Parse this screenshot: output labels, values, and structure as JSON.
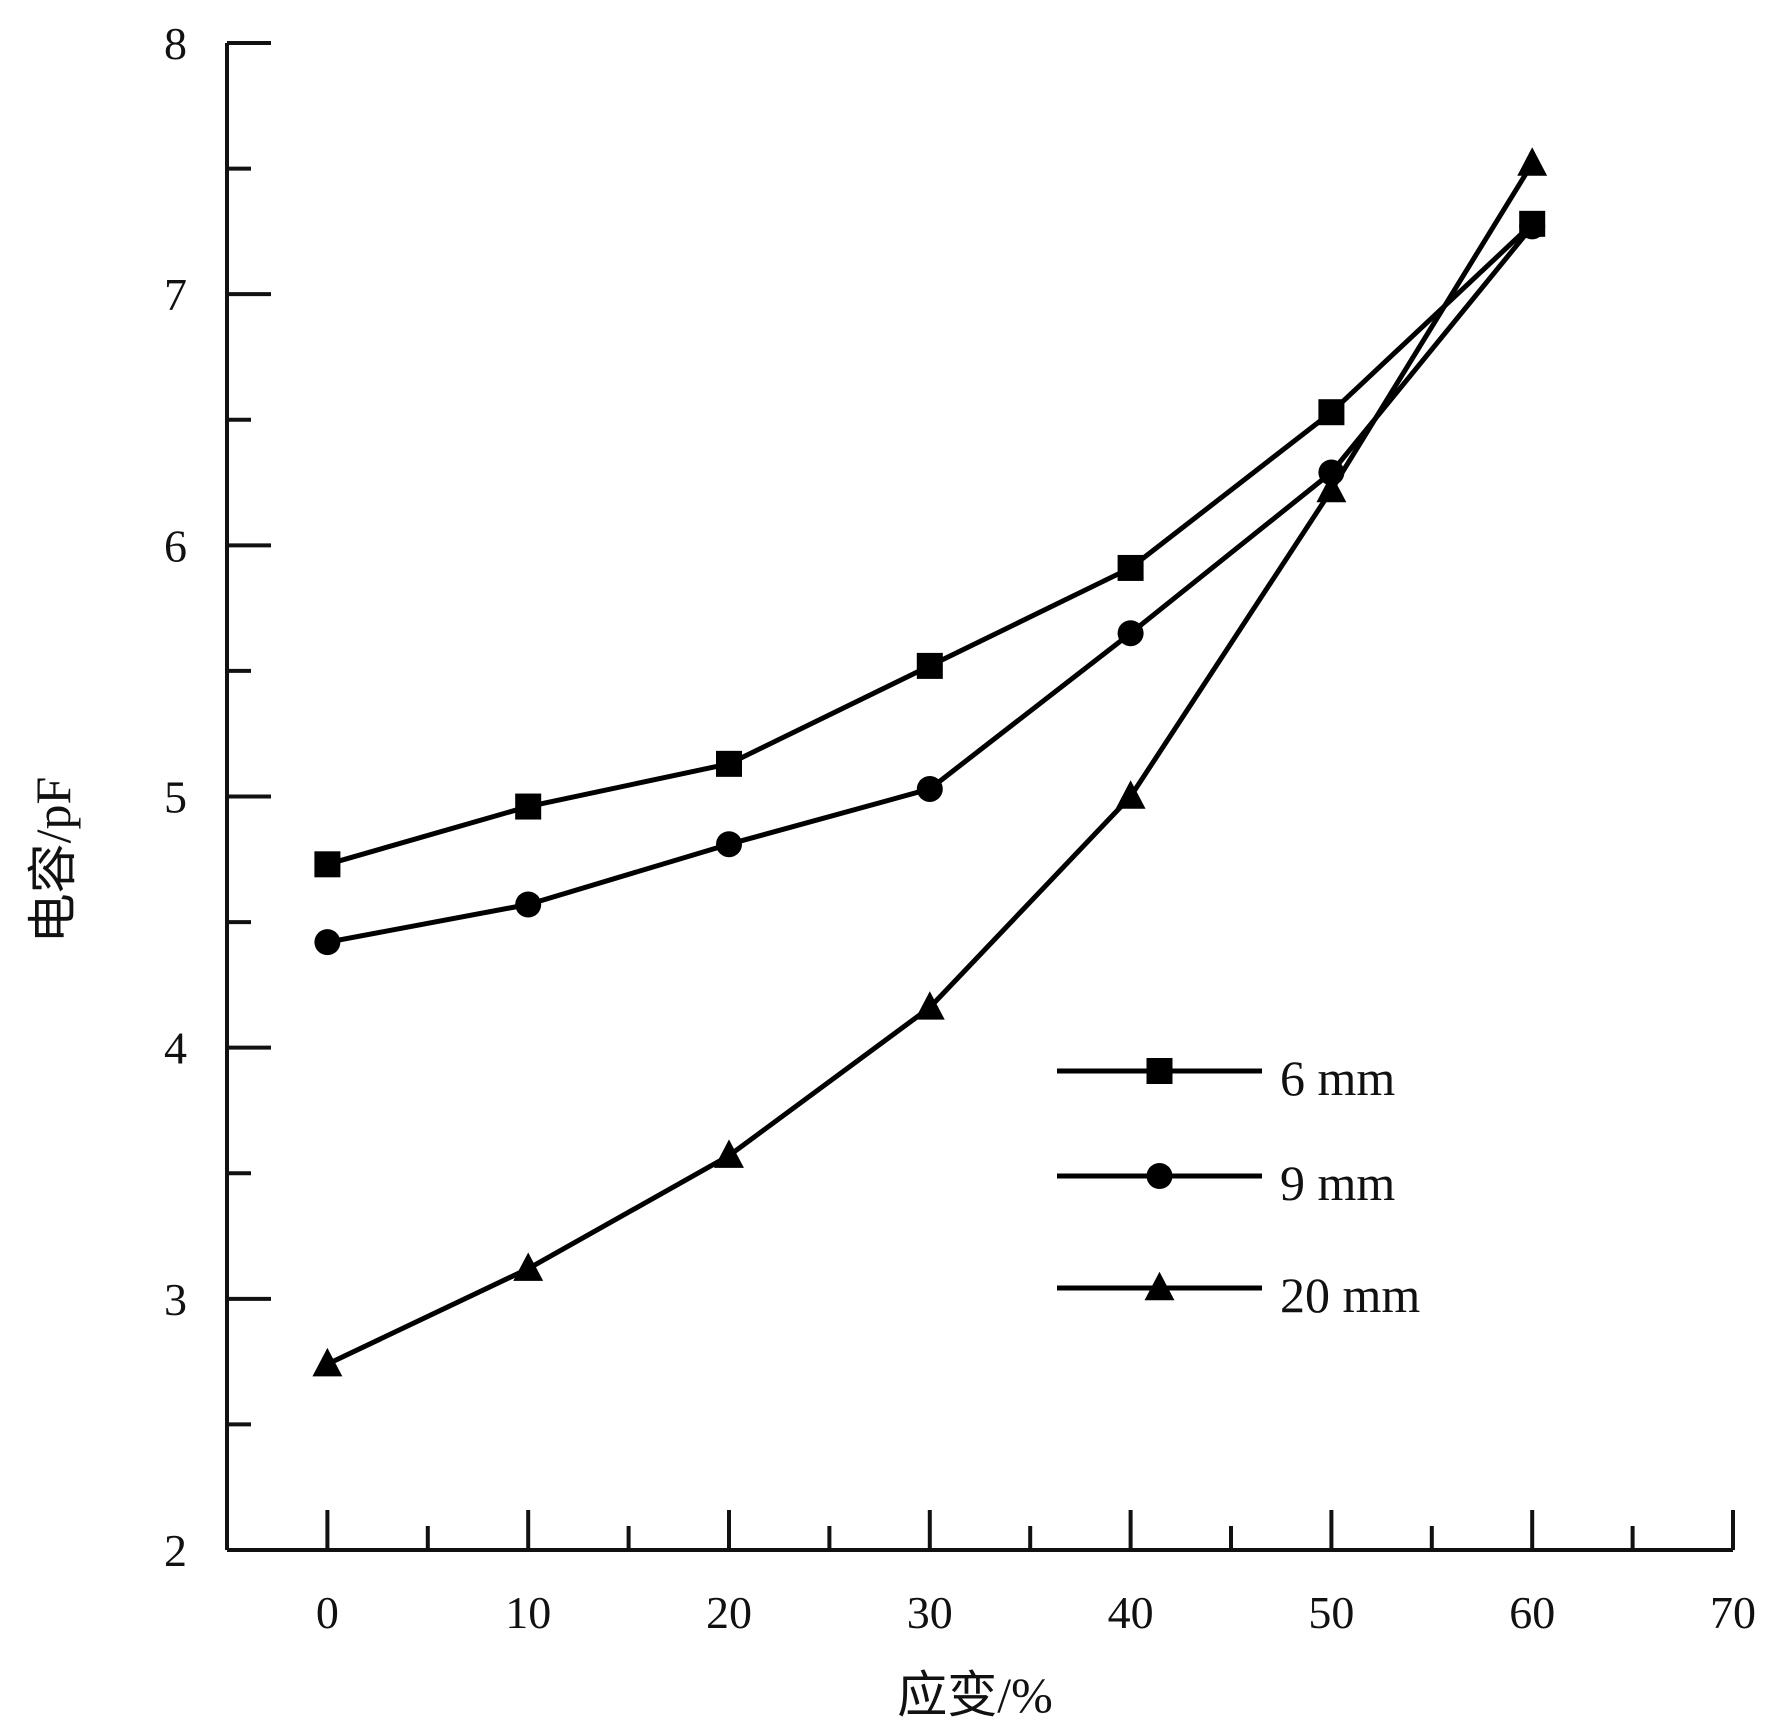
{
  "chart_data": {
    "type": "line",
    "title": "",
    "xlabel": "应变/%",
    "ylabel": "电容/pF",
    "xlim": [
      -5,
      70
    ],
    "ylim": [
      2,
      8
    ],
    "xticks": [
      0,
      10,
      20,
      30,
      40,
      50,
      60,
      70
    ],
    "xticks_minor": [
      5,
      15,
      25,
      35,
      45,
      55,
      65
    ],
    "yticks": [
      2,
      3,
      4,
      5,
      6,
      7,
      8
    ],
    "yticks_minor": [
      2.5,
      3.5,
      4.5,
      5.5,
      6.5,
      7.5
    ],
    "grid": false,
    "legend_position": "center-right",
    "x": [
      0,
      10,
      20,
      30,
      40,
      50,
      60
    ],
    "series": [
      {
        "name": "6 mm",
        "marker": "square",
        "values": [
          4.73,
          4.96,
          5.13,
          5.52,
          5.91,
          6.53,
          7.28
        ]
      },
      {
        "name": "9 mm",
        "marker": "circle",
        "values": [
          4.42,
          4.57,
          4.81,
          5.03,
          5.65,
          6.29,
          7.27
        ]
      },
      {
        "name": "20 mm",
        "marker": "triangle",
        "values": [
          2.74,
          3.12,
          3.57,
          4.16,
          5.0,
          6.22,
          7.52
        ]
      }
    ]
  }
}
